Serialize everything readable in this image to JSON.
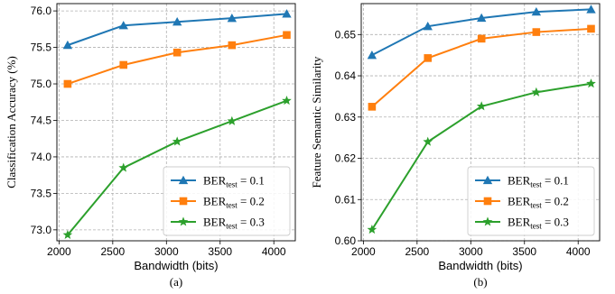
{
  "colors": {
    "ber_0_1": "#1f77b4",
    "ber_0_2": "#ff7f0e",
    "ber_0_3": "#2ca02c",
    "grid": "#b0b0b0"
  },
  "chart_data": [
    {
      "type": "line",
      "caption": "(a)",
      "xlabel": "Bandwidth (bits)",
      "ylabel": "Classification Accuracy (%)",
      "xlim": [
        1980,
        4200
      ],
      "ylim": [
        72.85,
        76.1
      ],
      "xticks": [
        2000,
        2500,
        3000,
        3500,
        4000
      ],
      "yticks": [
        73.0,
        73.5,
        74.0,
        74.5,
        75.0,
        75.5,
        76.0
      ],
      "ytick_labels": [
        "73.0",
        "73.5",
        "74.0",
        "74.5",
        "75.0",
        "75.5",
        "76.0"
      ],
      "grid": true,
      "legend_position": "bottom-right",
      "x": [
        2080,
        2600,
        3100,
        3610,
        4120
      ],
      "series": [
        {
          "legend_prefix": "BER",
          "legend_sub": "test",
          "legend_value": " = 0.1",
          "marker": "triangle",
          "color_key": "ber_0_1",
          "values": [
            75.53,
            75.8,
            75.85,
            75.9,
            75.96
          ]
        },
        {
          "legend_prefix": "BER",
          "legend_sub": "test",
          "legend_value": " = 0.2",
          "marker": "square",
          "color_key": "ber_0_2",
          "values": [
            75.0,
            75.26,
            75.43,
            75.53,
            75.67
          ]
        },
        {
          "legend_prefix": "BER",
          "legend_sub": "test",
          "legend_value": " = 0.3",
          "marker": "star",
          "color_key": "ber_0_3",
          "values": [
            72.93,
            73.85,
            74.21,
            74.49,
            74.77
          ]
        }
      ]
    },
    {
      "type": "line",
      "caption": "(b)",
      "xlabel": "Bandwidth (bits)",
      "ylabel": "Feature Semantic Similarity",
      "xlim": [
        1980,
        4200
      ],
      "ylim": [
        0.6,
        0.6575
      ],
      "xticks": [
        2000,
        2500,
        3000,
        3500,
        4000
      ],
      "yticks": [
        0.6,
        0.61,
        0.62,
        0.63,
        0.64,
        0.65
      ],
      "ytick_labels": [
        "0.60",
        "0.61",
        "0.62",
        "0.63",
        "0.64",
        "0.65"
      ],
      "grid": true,
      "legend_position": "bottom-right",
      "x": [
        2080,
        2600,
        3100,
        3610,
        4120
      ],
      "series": [
        {
          "legend_prefix": "BER",
          "legend_sub": "test",
          "legend_value": " = 0.1",
          "marker": "triangle",
          "color_key": "ber_0_1",
          "values": [
            0.645,
            0.652,
            0.654,
            0.6555,
            0.6561
          ]
        },
        {
          "legend_prefix": "BER",
          "legend_sub": "test",
          "legend_value": " = 0.2",
          "marker": "square",
          "color_key": "ber_0_2",
          "values": [
            0.6325,
            0.6443,
            0.649,
            0.6506,
            0.6514
          ]
        },
        {
          "legend_prefix": "BER",
          "legend_sub": "test",
          "legend_value": " = 0.3",
          "marker": "star",
          "color_key": "ber_0_3",
          "values": [
            0.6027,
            0.624,
            0.6326,
            0.636,
            0.6381
          ]
        }
      ]
    }
  ]
}
